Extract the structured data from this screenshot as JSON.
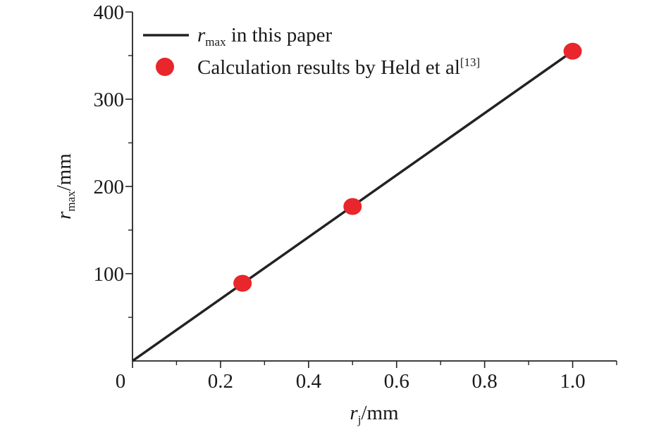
{
  "chart_data": {
    "type": "line",
    "x_axis": {
      "label_symbol": "r",
      "label_subscript": "j",
      "label_unit": "/mm",
      "range": [
        0,
        1.1
      ],
      "ticks": [
        0,
        0.2,
        0.4,
        0.6,
        0.8,
        1.0
      ],
      "tick_labels": [
        "0",
        "0.2",
        "0.4",
        "0.6",
        "0.8",
        "1.0"
      ]
    },
    "y_axis": {
      "label_symbol": "r",
      "label_subscript": "max",
      "label_unit": "/mm",
      "range": [
        0,
        400
      ],
      "ticks": [
        100,
        200,
        300,
        400
      ],
      "tick_labels": [
        "100",
        "200",
        "300",
        "400"
      ]
    },
    "series": [
      {
        "name_symbol": "r",
        "name_subscript": "max",
        "name_text": " in this paper",
        "kind": "line",
        "color": "#222222",
        "x": [
          0,
          1.0
        ],
        "y": [
          0,
          355
        ]
      },
      {
        "name_text": "Calculation results by Held et al",
        "name_superscript": "[13]",
        "kind": "scatter",
        "color": "#e8262b",
        "x": [
          0.25,
          0.5,
          1.0
        ],
        "y": [
          89,
          177,
          355
        ]
      }
    ],
    "legend_position": "top-left",
    "grid": false
  }
}
